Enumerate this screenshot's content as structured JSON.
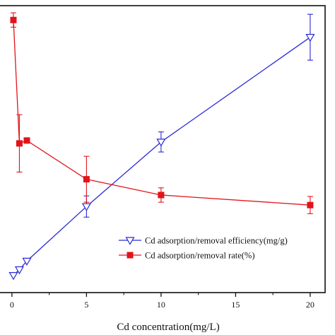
{
  "chart_data": {
    "type": "line",
    "title": "",
    "xlabel": "Cd concentration(mg/L)",
    "ylabel": "",
    "xlim": [
      -0.8,
      21
    ],
    "ylim": [
      0,
      100
    ],
    "x_ticks": [
      0,
      5,
      10,
      15,
      20
    ],
    "x_tick_labels": [
      "0",
      "5",
      "10",
      "15",
      "20"
    ],
    "grid": false,
    "legend_position": "bottom-right",
    "series": [
      {
        "name": "Cd adsorption/removal efficiency(mg/g)",
        "color": "#2a2ad6",
        "marker": "open-triangle-down",
        "x": [
          0.1,
          0.5,
          1,
          5,
          10,
          20
        ],
        "y": [
          6,
          8,
          11,
          30,
          52.5,
          89
        ],
        "err": [
          0,
          0,
          0,
          3.7,
          3.5,
          8
        ]
      },
      {
        "name": "Cd adsorption/removal rate(%)",
        "color": "#e0141a",
        "marker": "filled-square",
        "x": [
          0.1,
          0.5,
          1,
          5,
          10,
          20
        ],
        "y": [
          95,
          52,
          53,
          39.5,
          34,
          30.5
        ],
        "err": [
          2.5,
          10,
          0,
          8,
          2.5,
          3
        ]
      }
    ]
  }
}
